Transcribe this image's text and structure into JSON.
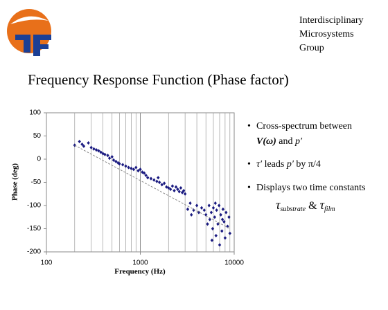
{
  "header": {
    "lines": [
      "Interdisciplinary",
      "Microsystems",
      "Group"
    ]
  },
  "bullets": [
    [
      "Cross-spectrum between",
      "V(ω)",
      " and ",
      "p′"
    ],
    [
      "τ′",
      " leads ",
      "p′",
      " by ",
      "π/4"
    ],
    [
      "Displays two time constants",
      "τ",
      "substrate",
      " & ",
      "τ",
      "film"
    ]
  ],
  "chart_data": {
    "type": "scatter",
    "title": "Frequency Response Function (Phase factor)",
    "x_label": "Frequency (Hz)",
    "y_label": "Phase (deg)",
    "xscale": "log",
    "xlim": [
      100,
      10000
    ],
    "xticks": [
      100,
      1000,
      10000
    ],
    "xminor": [
      200,
      300,
      400,
      500,
      600,
      700,
      800,
      900,
      2000,
      3000,
      4000,
      5000,
      6000,
      7000,
      8000,
      9000
    ],
    "ylim": [
      -200,
      100
    ],
    "yticks": [
      -200,
      -150,
      -100,
      -50,
      0,
      50,
      100
    ],
    "grid": "x",
    "series": [
      {
        "color": "#1a1a80",
        "marker": "diamond",
        "x": [
          200,
          225,
          240,
          250,
          280,
          300,
          320,
          340,
          360,
          380,
          400,
          420,
          450,
          470,
          500,
          520,
          550,
          580,
          600,
          650,
          700,
          750,
          800,
          850,
          900,
          950,
          1000,
          1050,
          1100,
          1150,
          1200,
          1300,
          1400,
          1500,
          1550,
          1600,
          1700,
          1800,
          1900,
          2000,
          2100,
          2200,
          2300,
          2400,
          2500,
          2600,
          2700,
          2800,
          2900,
          3000,
          3200,
          3400,
          3500,
          3700,
          4000,
          4200,
          4500,
          4800,
          5000,
          5200,
          5400,
          5500,
          5700,
          5900,
          6000,
          6200,
          6400,
          6500,
          6700,
          6900,
          7000,
          7200,
          7400,
          7600,
          7800,
          8000,
          8200,
          8500,
          8800,
          9000,
          6300,
          5800,
          7500
        ],
        "values": [
          30,
          38,
          32,
          28,
          35,
          25,
          22,
          20,
          18,
          15,
          12,
          10,
          8,
          2,
          5,
          -2,
          -5,
          -8,
          -10,
          -12,
          -15,
          -18,
          -20,
          -22,
          -18,
          -25,
          -22,
          -28,
          -30,
          -35,
          -40,
          -42,
          -45,
          -48,
          -40,
          -50,
          -55,
          -52,
          -60,
          -62,
          -65,
          -58,
          -68,
          -60,
          -65,
          -70,
          -62,
          -72,
          -68,
          -75,
          -108,
          -95,
          -120,
          -110,
          -100,
          -115,
          -105,
          -110,
          -120,
          -140,
          -100,
          -130,
          -115,
          -150,
          -105,
          -125,
          -165,
          -110,
          -140,
          -100,
          -185,
          -120,
          -155,
          -108,
          -135,
          -170,
          -115,
          -145,
          -125,
          -160,
          -95,
          -175,
          -130
        ]
      },
      {
        "color": "#888888",
        "marker": "dashed-line",
        "x": [
          200,
          9000
        ],
        "values": [
          30,
          -150
        ]
      }
    ]
  }
}
